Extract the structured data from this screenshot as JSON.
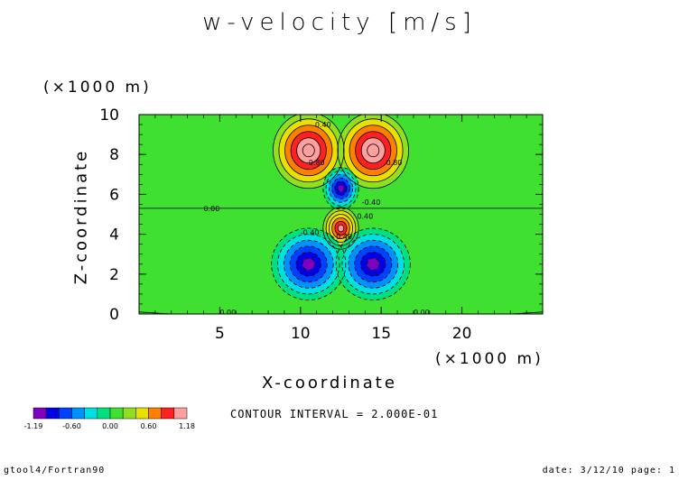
{
  "chart_data": {
    "type": "heatmap",
    "title": "w-velocity [m/s]",
    "xlabel": "X-coordinate",
    "xunit": "(×1000 m)",
    "ylabel": "Z-coordinate",
    "yunit": "(×1000 m)",
    "xlim": [
      0,
      25
    ],
    "ylim": [
      0,
      10
    ],
    "x_ticks": [
      "5",
      "10",
      "15",
      "20"
    ],
    "y_ticks": [
      "0",
      "2",
      "4",
      "6",
      "8",
      "10"
    ],
    "contour_interval_text": "CONTOUR INTERVAL = 2.000E-01",
    "contour_labels": [
      "0.40",
      "0.80",
      "-0.40",
      "0.00",
      "0.00",
      "0.00",
      "0.40",
      "0.80",
      "-0.40",
      "0.40"
    ],
    "colorbar": {
      "colors": [
        "#7f00c0",
        "#0000e0",
        "#0040ff",
        "#0090ff",
        "#00e0e0",
        "#00e080",
        "#40e030",
        "#90e020",
        "#e8e000",
        "#ff8000",
        "#ff2020",
        "#ffa0a0"
      ],
      "tick_labels": [
        "-1.19",
        "-0.60",
        "0.00",
        "0.60",
        "1.18"
      ]
    },
    "features": [
      {
        "type": "max",
        "x": 10.5,
        "z": 8.2,
        "value": 1.18
      },
      {
        "type": "max",
        "x": 14.5,
        "z": 8.2,
        "value": 1.18
      },
      {
        "type": "min",
        "x": 12.5,
        "z": 6.3,
        "value": -1.0
      },
      {
        "type": "max",
        "x": 12.5,
        "z": 4.3,
        "value": 1.1
      },
      {
        "type": "min",
        "x": 10.5,
        "z": 2.5,
        "value": -1.19
      },
      {
        "type": "min",
        "x": 14.5,
        "z": 2.5,
        "value": -1.19
      }
    ],
    "background_color": "#40e030"
  },
  "footer": {
    "left": "gtool4/Fortran90",
    "right": "date: 3/12/10 page: 1"
  }
}
